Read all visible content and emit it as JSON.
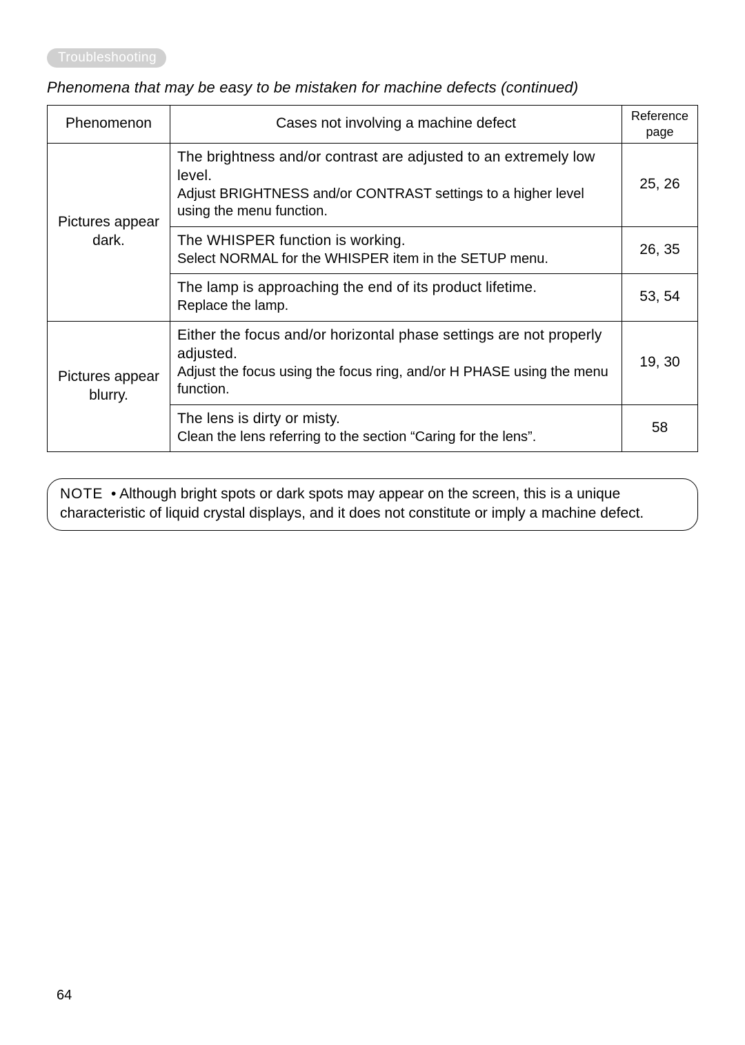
{
  "sectionTag": "Troubleshooting",
  "subtitle": "Phenomena that may be easy to be mistaken for machine defects (continued)",
  "table": {
    "headers": {
      "phenomenon": "Phenomenon",
      "case": "Cases not involving a machine defect",
      "reference": "Reference page"
    },
    "rows": [
      {
        "phenomenonRowspan": 3,
        "phenomenon": "Pictures appear dark.",
        "caseHead": "The brightness and/or contrast are adjusted to an extremely low level.",
        "caseBody": "Adjust BRIGHTNESS and/or CONTRAST settings to a higher level using the menu function.",
        "ref": "25, 26"
      },
      {
        "caseHead": "The WHISPER function is working.",
        "caseBody": "Select NORMAL for the WHISPER item in the SETUP menu.",
        "ref": "26, 35"
      },
      {
        "caseHead": "The lamp is approaching the end of its product lifetime.",
        "caseBody": "Replace the lamp.",
        "ref": "53, 54"
      },
      {
        "phenomenonRowspan": 2,
        "phenomenon": "Pictures appear blurry.",
        "caseHead": "Either the focus and/or horizontal phase settings are not properly adjusted.",
        "caseBody": "Adjust the focus using the focus ring, and/or H PHASE using the menu function.",
        "ref": "19, 30"
      },
      {
        "caseHead": "The lens is dirty or misty.",
        "caseBody": "Clean the lens referring to the section “Caring for the lens”.",
        "ref": "58"
      }
    ]
  },
  "note": {
    "label": "NOTE",
    "bullet": "•",
    "text": "Although bright spots or dark spots may appear on the screen, this is a unique characteristic of liquid crystal displays, and it does not constitute or imply a machine defect."
  },
  "pageNumber": "64"
}
